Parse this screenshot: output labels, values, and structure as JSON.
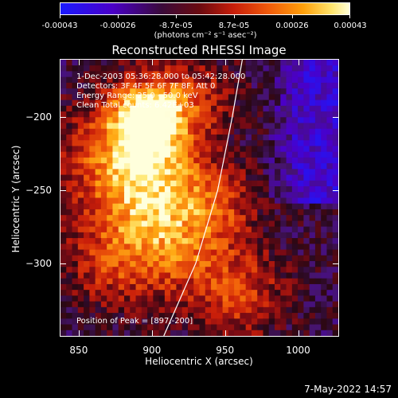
{
  "chart_data": {
    "type": "heatmap",
    "title": "Reconstructed RHESSI Image",
    "xlabel": "Heliocentric X (arcsec)",
    "ylabel": "Heliocentric Y (arcsec)",
    "xlim": [
      837,
      1028
    ],
    "ylim": [
      -350,
      -160
    ],
    "x_ticks": [
      "850",
      "900",
      "950",
      "1000"
    ],
    "y_ticks": [
      "-200",
      "-250",
      "-300"
    ],
    "colorbar": {
      "ticks": [
        "-0.00043",
        "-0.00026",
        "-8.7e-05",
        "8.7e-05",
        "0.00026",
        "0.00043"
      ],
      "units": "(photons cm⁻² s⁻¹ asec⁻²)",
      "range": [
        -0.00043,
        0.00043
      ]
    },
    "annotations": {
      "time_range": "1-Dec-2003 05:36:28.000 to 05:42:28.000",
      "detectors": "Detectors: 3F 4F 5F 6F 7F 8F, Att 0",
      "energy_range": "Energy Range: 25.0 - 50.0 keV",
      "clean": "Clean     Total counts: 6.42E+03",
      "peak": "Position of Peak = [897,-200]"
    },
    "peak": {
      "x": 897,
      "y": -200
    },
    "limb_curve": [
      [
        908,
        -350
      ],
      [
        930,
        -300
      ],
      [
        945,
        -250
      ],
      [
        955,
        -200
      ],
      [
        962,
        -160
      ]
    ]
  },
  "footer": {
    "timestamp": "7-May-2022 14:57"
  }
}
